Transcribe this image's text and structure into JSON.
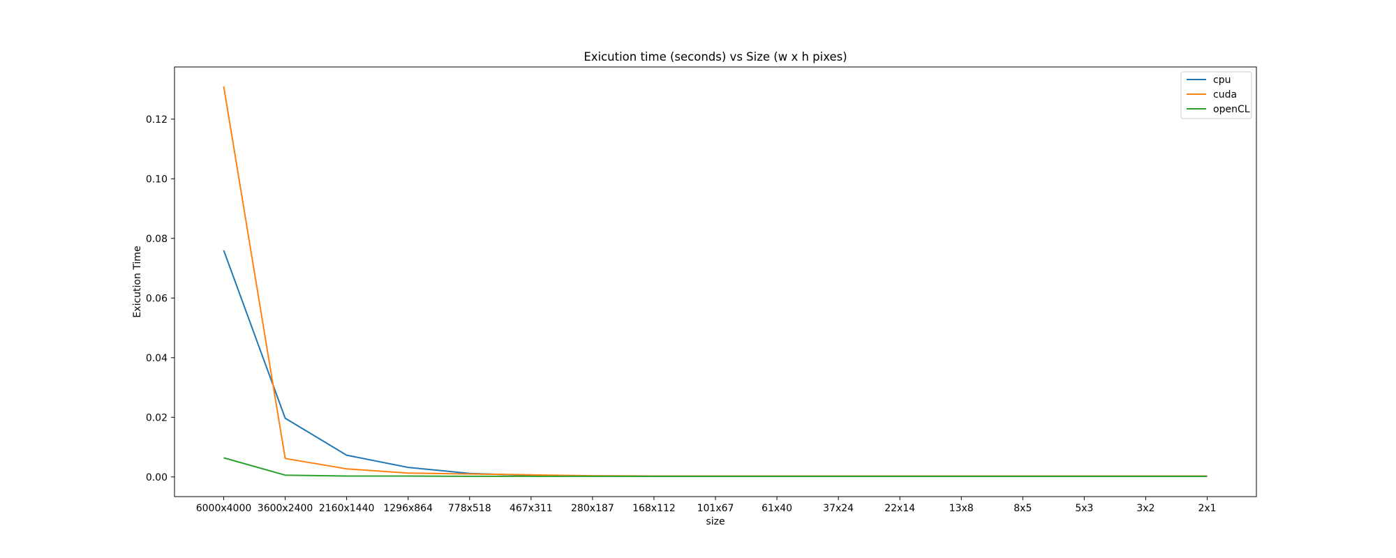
{
  "chart_data": {
    "type": "line",
    "title": "Exicution time (seconds) vs Size (w x h pixes)",
    "xlabel": "size",
    "ylabel": "Exicution Time",
    "categories": [
      "6000x4000",
      "3600x2400",
      "2160x1440",
      "1296x864",
      "778x518",
      "467x311",
      "280x187",
      "168x112",
      "101x67",
      "61x40",
      "37x24",
      "22x14",
      "13x8",
      "8x5",
      "5x3",
      "3x2",
      "2x1"
    ],
    "ylim": [
      -0.0066,
      0.1375
    ],
    "yticks": [
      "0.00",
      "0.02",
      "0.04",
      "0.06",
      "0.08",
      "0.10",
      "0.12"
    ],
    "ytick_values": [
      0.0,
      0.02,
      0.04,
      0.06,
      0.08,
      0.1,
      0.12
    ],
    "grid": false,
    "legend_position": "top-right",
    "series": [
      {
        "name": "cpu",
        "color": "#1f77b4",
        "values": [
          0.076,
          0.0197,
          0.0073,
          0.0032,
          0.0012,
          0.0005,
          0.0003,
          0.0002,
          0.0002,
          0.0002,
          0.0002,
          0.0002,
          0.0002,
          0.0002,
          0.0002,
          0.0002,
          0.0002
        ]
      },
      {
        "name": "cuda",
        "color": "#ff7f0e",
        "values": [
          0.131,
          0.0062,
          0.0027,
          0.0013,
          0.001,
          0.0007,
          0.0004,
          0.0003,
          0.0003,
          0.0003,
          0.0003,
          0.0003,
          0.0003,
          0.0003,
          0.0003,
          0.0003,
          0.0003
        ]
      },
      {
        "name": "openCL",
        "color": "#2ca02c",
        "values": [
          0.0064,
          0.0006,
          0.0003,
          0.0003,
          0.0002,
          0.0002,
          0.0002,
          0.0002,
          0.0002,
          0.0002,
          0.0002,
          0.0002,
          0.0002,
          0.0002,
          0.0002,
          0.0002,
          0.0002
        ]
      }
    ]
  }
}
